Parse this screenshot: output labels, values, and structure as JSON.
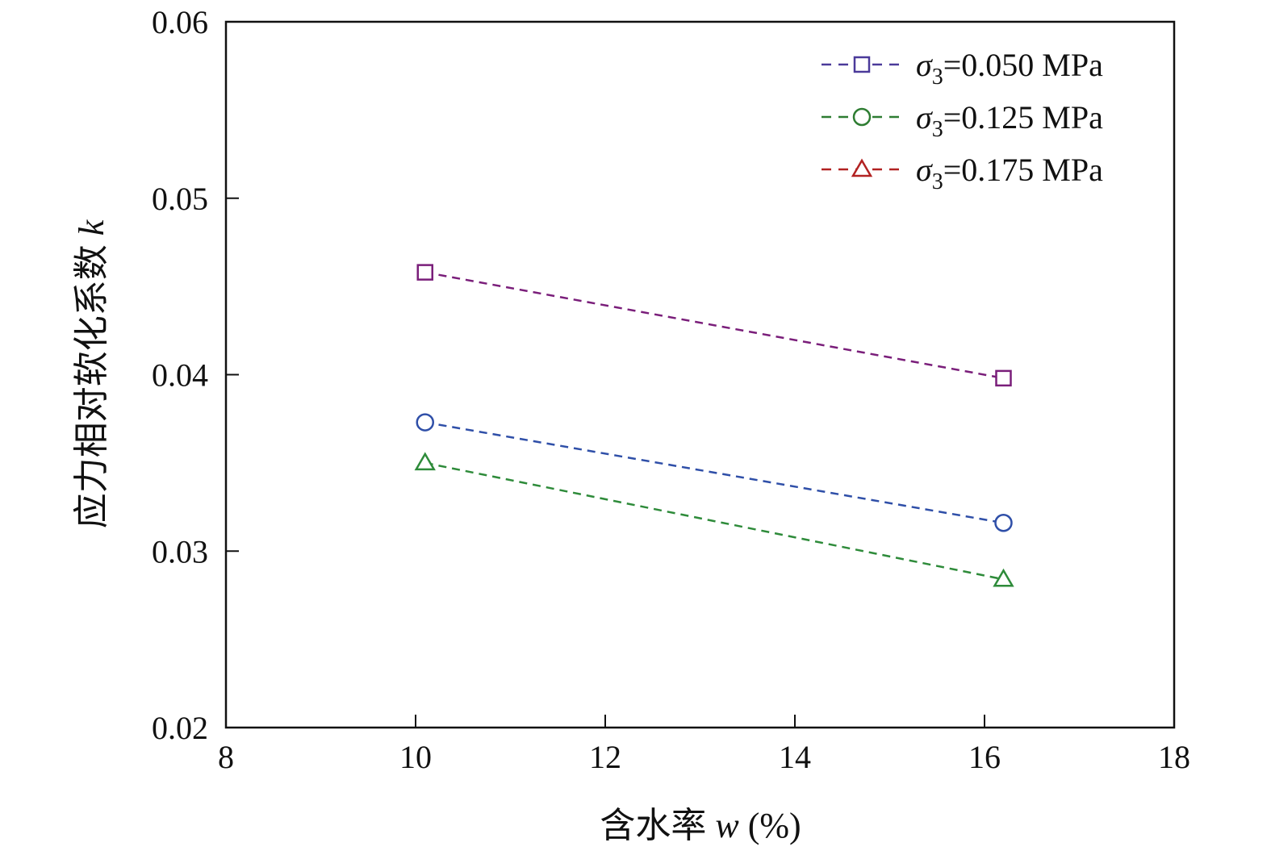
{
  "chart_data": {
    "type": "line",
    "xlabel": {
      "main": "含水率",
      "var": "w",
      "unit": "(%)"
    },
    "ylabel": {
      "main": "应力相对软化系数",
      "var": "k"
    },
    "xlim": [
      8,
      18
    ],
    "ylim": [
      0.02,
      0.06
    ],
    "xticks": [
      "8",
      "10",
      "12",
      "14",
      "16",
      "18"
    ],
    "yticks": [
      "0.02",
      "0.03",
      "0.04",
      "0.05",
      "0.06"
    ],
    "legend_position": "top-right",
    "grid": false,
    "series": [
      {
        "legend": {
          "symbol": "σ",
          "sub": "3",
          "value": "=0.050 MPa"
        },
        "marker": "square",
        "legend_color": "#4b3a9a",
        "color": "#7a1e7a",
        "marker_color": "#7a1e7a",
        "x": [
          10.1,
          16.2
        ],
        "y": [
          0.0458,
          0.0398
        ]
      },
      {
        "legend": {
          "symbol": "σ",
          "sub": "3",
          "value": "=0.125 MPa"
        },
        "marker": "circle",
        "legend_color": "#2e7d32",
        "color": "#2f4fa8",
        "marker_color": "#2f4fa8",
        "x": [
          10.1,
          16.2
        ],
        "y": [
          0.0373,
          0.0316
        ]
      },
      {
        "legend": {
          "symbol": "σ",
          "sub": "3",
          "value": "=0.175 MPa"
        },
        "marker": "triangle",
        "legend_color": "#b22222",
        "color": "#2e8b3a",
        "marker_color": "#2e8b3a",
        "x": [
          10.1,
          16.2
        ],
        "y": [
          0.035,
          0.0284
        ]
      }
    ]
  }
}
